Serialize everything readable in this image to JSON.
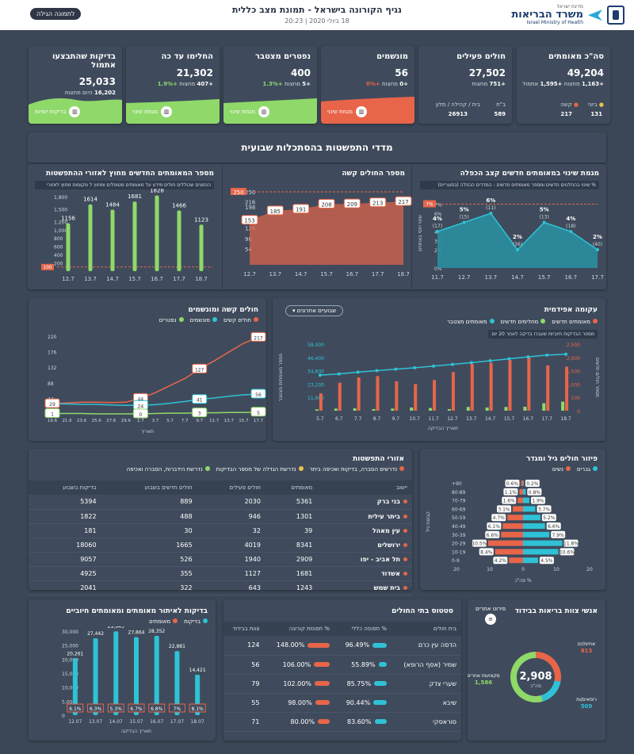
{
  "header": {
    "title": "נגיף הקורונה בישראל - תמונת מצב כללית",
    "date": "18 ביולי 2020 | 20:23",
    "back_button": "לתמונה הגילה",
    "logo_small": "מדינת ישראל",
    "logo_big": "משרד הבריאות",
    "logo_en": "Israel Ministry of Health"
  },
  "kpis": [
    {
      "label": "סה\"כ מאומתים",
      "value": "49,204",
      "delta_a": "+1,163",
      "delta_a_lbl": "מחצות",
      "delta_b": "+1,595",
      "delta_b_lbl": "אתמול",
      "sub1_lbl": "קשה",
      "sub1_val": "217",
      "sub2_lbl": "ביוני",
      "sub2_val": "131"
    },
    {
      "label": "חולים פעילים",
      "value": "27,502",
      "delta_a": "+751",
      "delta_a_lbl": "מחצות",
      "sub1_lbl": "בית / קהילה / מלון",
      "sub1_val": "26913",
      "sub2_lbl": "ב\"ח",
      "sub2_val": "589"
    },
    {
      "label": "מונשמים",
      "value": "56",
      "delta_a": "+0",
      "delta_a_lbl": "מחצות",
      "delta_b": "+0%",
      "button": "מגמת שינוי"
    },
    {
      "label": "נפטרים מצטבר",
      "value": "400",
      "delta_a": "+5",
      "delta_a_lbl": "מחצות",
      "delta_b": "+1.3%",
      "button": "מגמת שינוי"
    },
    {
      "label": "החלימו עד כה",
      "value": "21,302",
      "delta_a": "+407",
      "delta_a_lbl": "מחצות",
      "delta_b": "+1.9%",
      "button": "מגמת שינוי"
    },
    {
      "label": "בדיקות שהתבצעו אתמול",
      "value": "25,033",
      "delta_a": "16,202",
      "delta_a_lbl": "היום מחצות",
      "button": "בדיקות יומיות"
    }
  ],
  "section_title": "מדדי התפשטות בהסתכלות שבועית",
  "panel_growth": {
    "title": "מגמת שינוי במאומתים חדשים קצב הכפלה",
    "note": "% שינוי בהחלטים חדשים ומספר מאומתים חדשים - המדדים הכפלה (בסוגריים)",
    "ylabel": "שינוי יחסי באחוזים",
    "chart_data": {
      "type": "area",
      "categories": [
        "11.7",
        "12.7",
        "13.7",
        "14.7",
        "15.7",
        "16.7",
        "17.7"
      ],
      "values": [
        4,
        5,
        6,
        2,
        5,
        4,
        2
      ],
      "labels": [
        "4%",
        "5%",
        "6%",
        "2%",
        "5%",
        "4%",
        "2%"
      ],
      "sublabels": [
        "(17)",
        "(15)",
        "(11)",
        "(36)",
        "(13)",
        "(18)",
        "(40)"
      ],
      "ylim": [
        0,
        8
      ],
      "yticks": [
        "0%",
        "2%",
        "3%",
        "4%",
        "6%",
        "7%"
      ],
      "threshold_label": "7%"
    }
  },
  "panel_severe": {
    "title": "מספר החולים קשה",
    "chart_data": {
      "type": "line",
      "categories": [
        "12.7",
        "13.7",
        "14.7",
        "15.7",
        "16.7",
        "17.7",
        "18.7"
      ],
      "values": [
        153,
        185,
        191,
        208,
        209,
        213,
        217
      ],
      "ylim": [
        0,
        250
      ],
      "yticks": [
        "54",
        "90",
        "126",
        "162",
        "198",
        "216",
        "250"
      ],
      "threshold_label": "250"
    }
  },
  "panel_tested": {
    "title": "מספר המאומתים החדשים מחוץ לאזורי ההתפשטות",
    "note": "הנתונים שכוללים חולים מידע על מאומתים מטופלים ומחוץ ל מקומות מחוץ לאזורי",
    "chart_data": {
      "type": "bar",
      "categories": [
        "12.7",
        "13.7",
        "14.7",
        "15.7",
        "16.7",
        "17.7",
        "18.7"
      ],
      "values": [
        1156,
        1614,
        1484,
        1681,
        1828,
        1466,
        1123
      ],
      "ylim": [
        0,
        1800
      ],
      "yticks": [
        "200",
        "400",
        "600",
        "800",
        "1,000",
        "1,200",
        "1,500",
        "1,800"
      ],
      "threshold_label": "100"
    }
  },
  "panel_curve": {
    "title": "עקומה אפידמית",
    "dropdown": "שבועיים אחרונים",
    "note": "מספר הבדיקות חיוביות שעברו בדיקה לאחר 20 יום",
    "legend": [
      "מאומתים חדשים",
      "מחלימים חדשים",
      "מאומתים מצטבר"
    ],
    "ylabel_right": "מספר חולים חדשים",
    "ylabel_left": "מספר מאומתים מצטבר",
    "xlabel": "תאריך הבדיקה",
    "chart_data": {
      "type": "bar",
      "categories": [
        "5.7",
        "6.7",
        "7.7",
        "8.7",
        "9.7",
        "10.7",
        "11.7",
        "12.7",
        "13.7",
        "14.7",
        "15.7",
        "16.7",
        "17.7",
        "18.7"
      ],
      "series": [
        {
          "name": "מאומתים חדשים",
          "values": [
            650,
            1050,
            1250,
            1300,
            1100,
            1000,
            1150,
            1450,
            1750,
            1800,
            1900,
            2000,
            1700,
            1650
          ]
        },
        {
          "name": "מחלימים חדשים",
          "values": [
            50,
            80,
            90,
            60,
            80,
            120,
            100,
            60,
            140,
            120,
            140,
            150,
            280,
            340
          ]
        },
        {
          "name": "מאומתים מצטבר",
          "values": [
            31000,
            32000,
            33600,
            34900,
            36200,
            37400,
            38800,
            40300,
            41900,
            43500,
            45200,
            46900,
            48400,
            49200
          ]
        }
      ],
      "yticks_right": [
        "0",
        "500",
        "1,000",
        "1,500",
        "2,000",
        "2,500"
      ],
      "yticks_left": [
        "11,600",
        "23,200",
        "34,800",
        "46,400",
        "58,000"
      ]
    }
  },
  "panel_severe_vent": {
    "title": "חולים קשה ומונשמים",
    "legend": [
      "חולים קשים",
      "מונשמים",
      "נפטרים"
    ],
    "xlabel": "תאריך",
    "chart_data": {
      "type": "line",
      "categories": [
        "19.6",
        "21.6",
        "23.6",
        "25.6",
        "27.6",
        "29.6",
        "1.7",
        "3.7",
        "5.7",
        "7.7",
        "9.7",
        "11.7",
        "13.7",
        "15.7",
        "17.7"
      ],
      "series": [
        {
          "name": "חולים קשים",
          "values": [
            29,
            31,
            33,
            33,
            32,
            33,
            44,
            60,
            80,
            100,
            127,
            150,
            175,
            200,
            217
          ]
        },
        {
          "name": "מונשמים",
          "values": [
            29,
            28,
            27,
            27,
            25,
            24,
            24,
            26,
            30,
            35,
            41,
            45,
            50,
            54,
            56
          ]
        },
        {
          "name": "נפטרים",
          "values": [
            1,
            1,
            1,
            0,
            0,
            0,
            0,
            1,
            2,
            2,
            3,
            3,
            4,
            4,
            5
          ]
        }
      ],
      "ylim": [
        0,
        220
      ],
      "yticks": [
        "0",
        "44",
        "88",
        "132",
        "176",
        "220"
      ],
      "point_labels": [
        "217",
        "127",
        "44",
        "24",
        "56",
        "41",
        "29",
        "1",
        "0",
        "3",
        "5"
      ]
    }
  },
  "panel_age": {
    "title": "פיזור חולים גיל ומגדר",
    "legend": [
      "גברים",
      "נשים"
    ],
    "xlabel": "% סה\"כ",
    "ylabel": "קבוצת גיל",
    "chart_data": {
      "type": "bar",
      "categories": [
        "0-9",
        "10-19",
        "20-29",
        "30-39",
        "40-49",
        "50-59",
        "60-69",
        "70-79",
        "80-89",
        "90+"
      ],
      "series": [
        {
          "name": "נשים",
          "values": [
            4.2,
            8.4,
            10.5,
            6.6,
            6.1,
            4.7,
            3.1,
            1.6,
            1.1,
            0.6
          ]
        },
        {
          "name": "גברים",
          "values": [
            4.5,
            10.6,
            11.8,
            7.9,
            6.6,
            5.2,
            3.7,
            1.9,
            0.8,
            0.2
          ]
        }
      ],
      "xticks": [
        "20",
        "10",
        "0",
        "10",
        "20"
      ]
    }
  },
  "panel_outbreak": {
    "title": "אזורי התפשטות",
    "legend": [
      "נדרשים הסברה, בדיקות ואכיפה ביתר",
      "נדרשת הגדלה של מספר הבדיקות",
      "נדרשת הידברות, הסברה ואכיפה"
    ],
    "columns": [
      "יישוב",
      "מאומתים",
      "חולים פעילים",
      "חולים חדשים בשבוע",
      "בדיקות בשבוע"
    ],
    "rows": [
      [
        "בני ברק",
        "5361",
        "2030",
        "889",
        "5394"
      ],
      [
        "ביתר עילית",
        "1301",
        "946",
        "488",
        "1822"
      ],
      [
        "עין מאהל",
        "39",
        "32",
        "30",
        "181"
      ],
      [
        "ירושלים",
        "8341",
        "4019",
        "1665",
        "18060"
      ],
      [
        "תל אביב - יפו",
        "2909",
        "1940",
        "526",
        "9057"
      ],
      [
        "אשדוד",
        "1681",
        "1127",
        "355",
        "4925"
      ],
      [
        "בית שמש",
        "1243",
        "643",
        "322",
        "2041"
      ]
    ]
  },
  "panel_tests": {
    "title": "בדיקות לאיתור מאומתים ומאומתים חיוביים",
    "legend": [
      "בדיקות",
      "מאומתים"
    ],
    "xlabel": "תאריך הבדיקה",
    "chart_data": {
      "type": "bar",
      "categories": [
        "12.07",
        "13.07",
        "14.07",
        "15.07",
        "16.07",
        "17.07",
        "18.07"
      ],
      "series": [
        {
          "name": "בדיקות",
          "values": [
            20261,
            27442,
            29945,
            27864,
            28352,
            22881,
            14421
          ]
        }
      ],
      "positive_pct": [
        "6.1%",
        "6.3%",
        "5.3%",
        "6.7%",
        "6.8%",
        "7%",
        "8.1%"
      ],
      "ylim": [
        0,
        30000
      ],
      "yticks": [
        "0",
        "5,000",
        "10,000",
        "15,000",
        "20,000",
        "25,000",
        "30,000"
      ]
    }
  },
  "panel_hospitals": {
    "title": "סטטוס בתי החולים",
    "columns": [
      "בית חולים",
      "% תפוסה כללי",
      "% תפוסת קורונה",
      "צוות בבידוד"
    ],
    "rows": [
      [
        "הדסה עין כרם",
        "96.49%",
        "148.00%",
        "124"
      ],
      [
        "שמיר (אסף הרופא)",
        "55.89%",
        "106.00%",
        "56"
      ],
      [
        "שערי צדק",
        "85.75%",
        "102.00%",
        "79"
      ],
      [
        "שיבא",
        "90.44%",
        "98.00%",
        "55"
      ],
      [
        "סוראסקי",
        "83.60%",
        "80.00%",
        "71"
      ]
    ],
    "general": [
      96.49,
      55.89,
      85.75,
      90.44,
      83.6
    ],
    "corona": [
      148,
      106,
      102,
      98,
      80
    ]
  },
  "panel_staff": {
    "title": "אנשי צוות בריאות בבידוד",
    "side_label": "פירוט אחרים",
    "total": "2,908",
    "total_lbl": "סה\"כ",
    "segments": [
      {
        "label": "אחיות/ים",
        "value": "813",
        "color": "#e8654a"
      },
      {
        "label": "רופאים/ות",
        "value": "509",
        "color": "#2fc2d6"
      },
      {
        "label": "מקצועות אחרים",
        "value": "1,586",
        "color": "#8fd96a"
      }
    ]
  },
  "colors": {
    "red": "#e8654a",
    "teal": "#2fc2d6",
    "green": "#8fd96a",
    "bg": "#3b4656",
    "card": "#3f4b5c"
  }
}
